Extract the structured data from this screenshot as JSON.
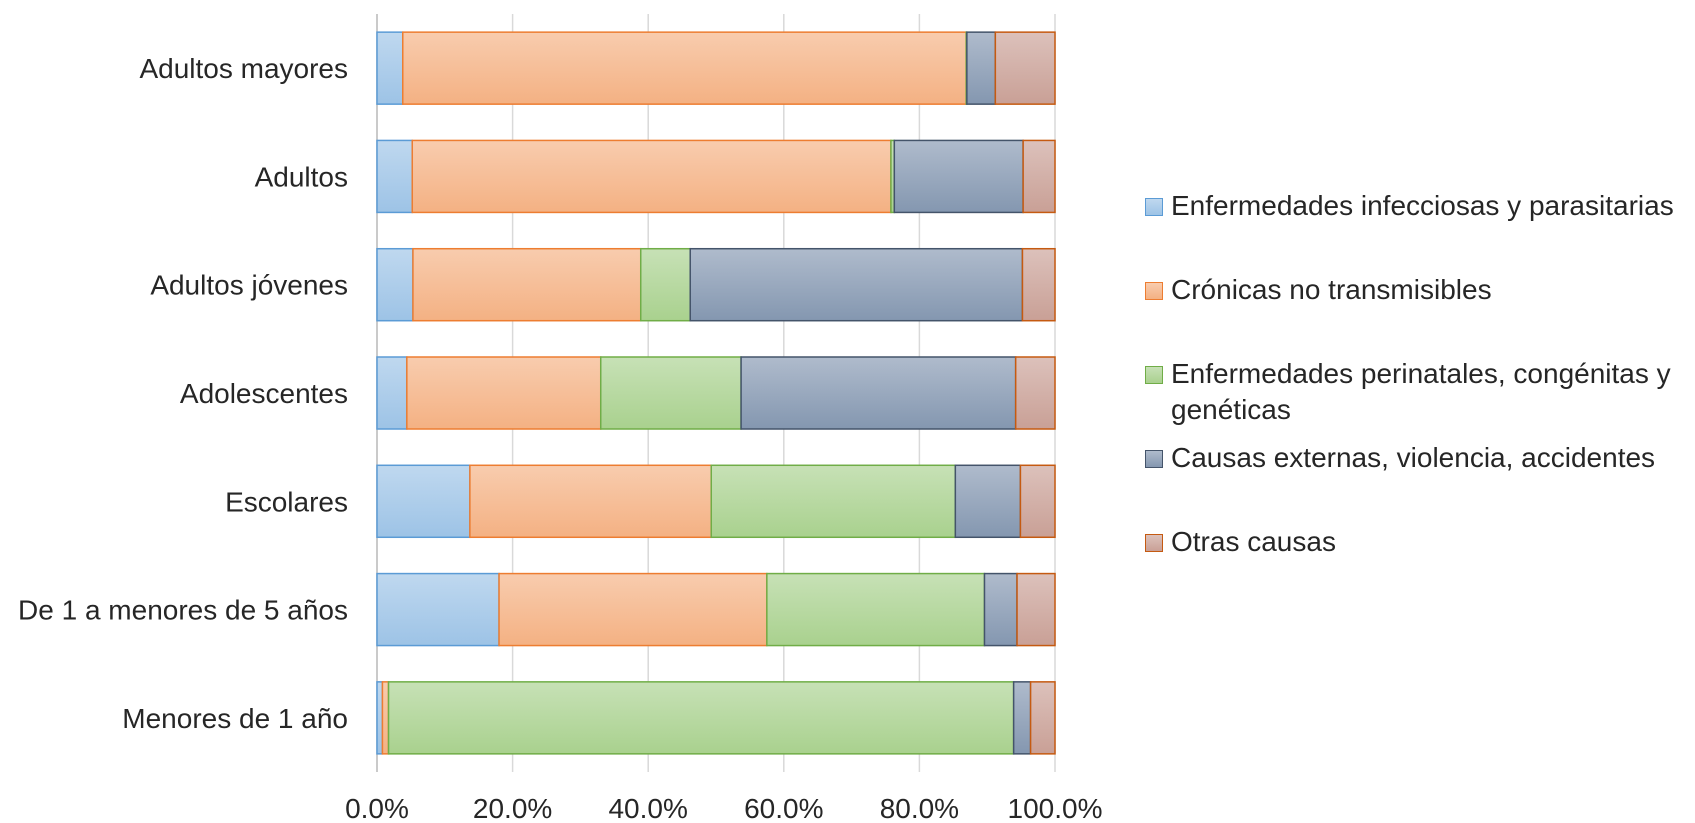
{
  "chart_data": {
    "type": "bar",
    "orientation": "horizontal",
    "stacked": "percent",
    "categories": [
      "Menores de 1 año",
      "De 1 a menores de 5 años",
      "Escolares",
      "Adolescentes",
      "Adultos jóvenes",
      "Adultos ",
      "Adultos mayores "
    ],
    "series": [
      {
        "name": "Enfermedades infecciosas y parasitarias",
        "color": "#9dc3e6",
        "values": [
          0.8,
          18.0,
          13.7,
          4.4,
          5.3,
          5.2,
          3.8
        ]
      },
      {
        "name": "Crónicas no transmisibles",
        "color": "#f4b183",
        "values": [
          0.9,
          39.5,
          35.6,
          28.6,
          33.6,
          70.6,
          83.1
        ]
      },
      {
        "name": "Enfermedades perinatales, congénitas y genéticas",
        "color": "#a9d18e",
        "values": [
          92.2,
          32.1,
          36.0,
          20.7,
          7.3,
          0.5,
          0.1
        ]
      },
      {
        "name": "Causas externas, violencia, accidentes",
        "color": "#8497b0",
        "values": [
          2.5,
          4.8,
          9.6,
          40.5,
          49.0,
          19.0,
          4.2
        ]
      },
      {
        "name": "Otras causas",
        "color": "#c9a096",
        "values": [
          3.6,
          5.6,
          5.1,
          5.8,
          4.8,
          4.7,
          8.8
        ]
      }
    ],
    "xlim": [
      0,
      100
    ],
    "xticks": [
      "0.0%",
      "20.0%",
      "40.0%",
      "60.0%",
      "80.0%",
      "100.0%"
    ],
    "grid": "vertical",
    "legend_position": "right"
  },
  "legend_lines": [
    [
      "Enfermedades infecciosas y parasitarias"
    ],
    [
      "Crónicas no transmisibles"
    ],
    [
      "Enfermedades perinatales, congénitas y",
      "genéticas"
    ],
    [
      "Causas externas, violencia, accidentes"
    ],
    [
      "Otras causas"
    ]
  ],
  "colors": {
    "borders": [
      "#5b9bd5",
      "#ed7d31",
      "#70ad47",
      "#44546a",
      "#c55a11"
    ],
    "grid": "#d9d9d9",
    "axis": "#bfbfbf"
  }
}
